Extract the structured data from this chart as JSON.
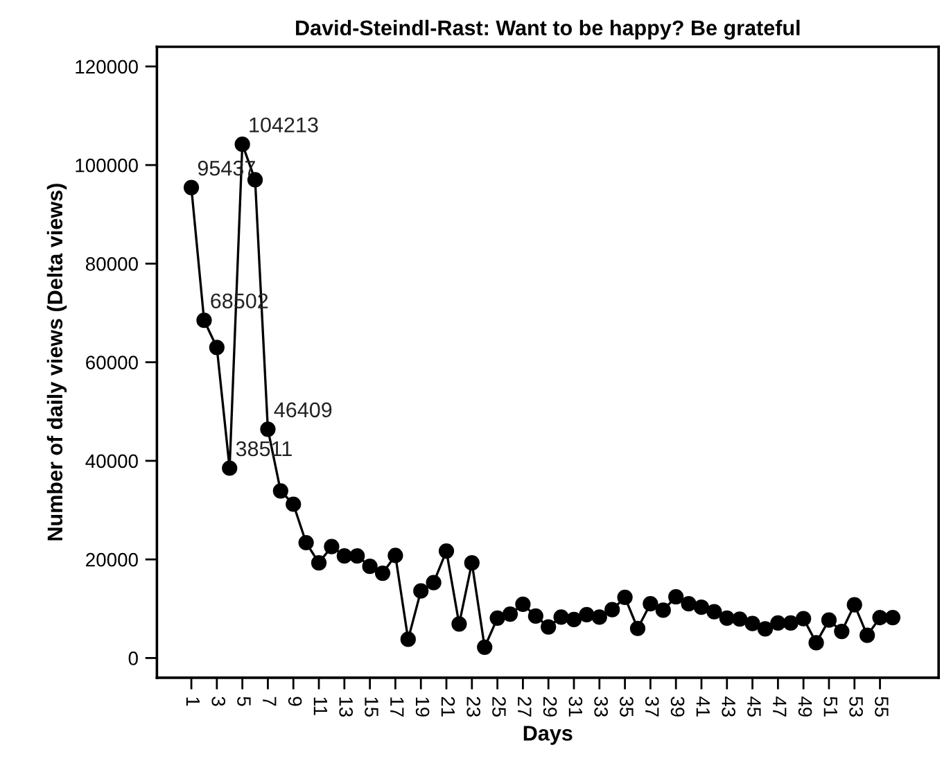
{
  "chart_data": {
    "type": "line",
    "title": "David-Steindl-Rast: Want to be happy? Be grateful",
    "xlabel": "Days",
    "ylabel": "Number of daily views (Delta views)",
    "categories": [
      "1",
      null,
      "3",
      null,
      "5",
      null,
      "7",
      null,
      "9",
      null,
      "11",
      null,
      "13",
      null,
      "15",
      null,
      "17",
      null,
      "19",
      null,
      "21",
      null,
      "23",
      null,
      "25",
      null,
      "27",
      null,
      "29",
      null,
      "31",
      null,
      "33",
      null,
      "35",
      null,
      "37",
      null,
      "39",
      null,
      "41",
      null,
      "43",
      null,
      "45",
      null,
      "47",
      null,
      "49",
      null,
      "51",
      null,
      "53",
      null,
      "55",
      null
    ],
    "series": [
      {
        "color": "#000000",
        "values": [
          95437,
          68502,
          63000,
          38511,
          104213,
          97000,
          46409,
          33900,
          31200,
          23400,
          19300,
          22600,
          20700,
          20700,
          18600,
          17200,
          20800,
          3800,
          13600,
          15300,
          21700,
          6900,
          19300,
          2200,
          8100,
          8900,
          10900,
          8500,
          6300,
          8300,
          7800,
          8800,
          8300,
          9800,
          12300,
          6000,
          11000,
          9700,
          12400,
          11000,
          10300,
          9400,
          8100,
          7900,
          7000,
          5900,
          7100,
          7100,
          8000,
          3100,
          7700,
          5400,
          10800,
          4600,
          8200,
          8200
        ],
        "value_labels": [
          "95437",
          "68502",
          null,
          "38511",
          "104213",
          null,
          "46409",
          null,
          null,
          null,
          null,
          null,
          null,
          null,
          null,
          null,
          null,
          null,
          null,
          null,
          null,
          null,
          null,
          null,
          null,
          null,
          null,
          null,
          null,
          null,
          null,
          null,
          null,
          null,
          null,
          null,
          null,
          null,
          null,
          null,
          null,
          null,
          null,
          null,
          null,
          null,
          null,
          null,
          null,
          null,
          null,
          null,
          null,
          null,
          null,
          null
        ]
      }
    ],
    "ylim": [
      -4000,
      124000
    ],
    "yticks": [
      0,
      20000,
      40000,
      60000,
      80000,
      100000,
      120000
    ],
    "marker": "circle",
    "line_style": "solid",
    "grid": false,
    "legend": false
  }
}
